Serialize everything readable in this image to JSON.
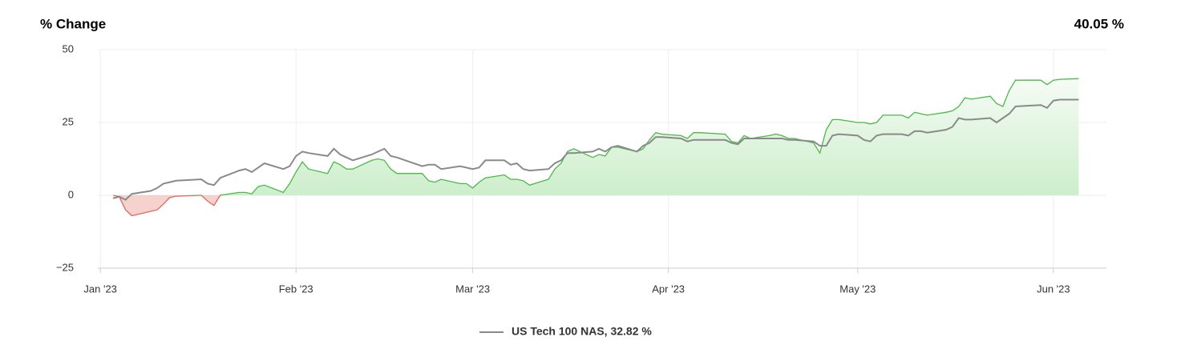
{
  "chart_data": {
    "type": "line",
    "title": "% Change",
    "subtitle": "40.05 %",
    "x": [
      2,
      3,
      4,
      5,
      8,
      9,
      10,
      11,
      12,
      16,
      17,
      18,
      19,
      22,
      23,
      24,
      25,
      26,
      29,
      30,
      31,
      32,
      33,
      36,
      37,
      38,
      39,
      40,
      43,
      44,
      45,
      46,
      47,
      51,
      52,
      53,
      54,
      57,
      58,
      59,
      60,
      61,
      64,
      65,
      66,
      67,
      68,
      71,
      72,
      73,
      74,
      75,
      78,
      79,
      80,
      81,
      82,
      85,
      86,
      87,
      88,
      89,
      92,
      93,
      94,
      95,
      99,
      100,
      101,
      102,
      103,
      106,
      107,
      108,
      109,
      110,
      113,
      114,
      115,
      116,
      117,
      120,
      121,
      122,
      123,
      124,
      127,
      128,
      129,
      130,
      131,
      134,
      135,
      136,
      137,
      138,
      141,
      142,
      143,
      144,
      145,
      149,
      150,
      151,
      152,
      155
    ],
    "series": [
      {
        "color": "#4cb848",
        "negative_color": "#e0695f",
        "area": true,
        "values": [
          0,
          -0.5,
          -5,
          -7,
          -5.5,
          -5,
          -3,
          -0.8,
          -0.3,
          0,
          -2,
          -3.5,
          0,
          1,
          1,
          0.5,
          3,
          3.5,
          1,
          4,
          8,
          11.5,
          9,
          7.5,
          11.5,
          10.5,
          9,
          9,
          12,
          12.5,
          12,
          9,
          7.5,
          7.5,
          5,
          4.5,
          5.5,
          4,
          4,
          2.5,
          4.5,
          6,
          7,
          5.5,
          5.5,
          5,
          3.5,
          5.5,
          9,
          11,
          15,
          16,
          13,
          14,
          13.5,
          16.5,
          16.5,
          15,
          16,
          19,
          21.5,
          21,
          20.5,
          19.5,
          21.5,
          21.5,
          21,
          18.5,
          18,
          20.5,
          19.5,
          20.5,
          21,
          20.5,
          19.5,
          19.5,
          18,
          14.5,
          22.5,
          26,
          26,
          25,
          25,
          24.5,
          25,
          27.5,
          27.5,
          26.5,
          28.5,
          28,
          27.5,
          28.5,
          29,
          30.5,
          33.5,
          33,
          34,
          31.5,
          30.5,
          36,
          39.5,
          39.5,
          38,
          39.5,
          39.8,
          40.05
        ]
      },
      {
        "name": "US Tech 100 NAS, 32.82 %",
        "color": "#8a8a8a",
        "values": [
          -1,
          -0.5,
          -1.5,
          0.5,
          1.5,
          2.5,
          4,
          4.5,
          5,
          5.5,
          4,
          3.5,
          6,
          8.5,
          9,
          8,
          9.5,
          11,
          9,
          10,
          13.5,
          15,
          14.5,
          13.5,
          16,
          14,
          13,
          12,
          14,
          15,
          16,
          13.5,
          13,
          10,
          10.5,
          10.5,
          9,
          10,
          9.5,
          9,
          9.5,
          12,
          12,
          10.5,
          11,
          9,
          8.5,
          9,
          11,
          12,
          14.5,
          14.5,
          15,
          16,
          15,
          16.5,
          17,
          15,
          17,
          18,
          20,
          20,
          19.5,
          18.5,
          19,
          19,
          19,
          18,
          17.5,
          19.5,
          19.5,
          19.5,
          19.5,
          19.5,
          19,
          19,
          18.5,
          17,
          17,
          20.5,
          21,
          20.5,
          19,
          18.5,
          20.5,
          21,
          21,
          20.5,
          22,
          22,
          21.5,
          22.5,
          23.5,
          26.5,
          26,
          26,
          26.5,
          25,
          26.5,
          28,
          30.5,
          31,
          30,
          32.5,
          32.82,
          32.82
        ]
      }
    ],
    "xlim": [
      -0.4,
      159.4
    ],
    "xticks": [
      {
        "value": 0,
        "label": "Jan '23"
      },
      {
        "value": 31,
        "label": "Feb '23"
      },
      {
        "value": 59,
        "label": "Mar '23"
      },
      {
        "value": 90,
        "label": "Apr '23"
      },
      {
        "value": 120,
        "label": "May '23"
      },
      {
        "value": 151,
        "label": "Jun '23"
      }
    ],
    "ylim": [
      -25,
      50
    ],
    "yticks": [
      50,
      25,
      0,
      {
        "value": -25,
        "label": "−25"
      }
    ],
    "grid": true
  }
}
